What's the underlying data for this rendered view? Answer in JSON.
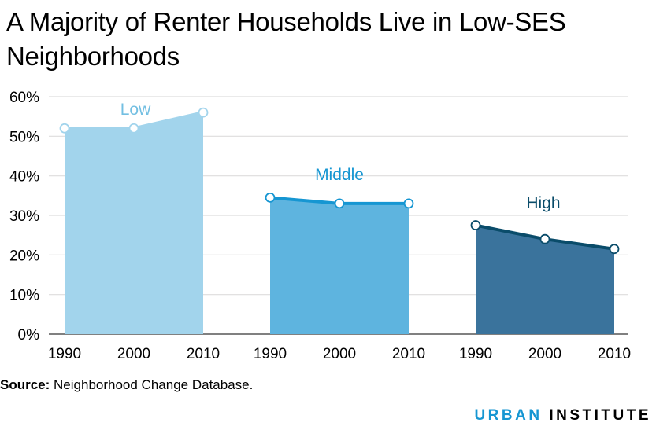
{
  "title": "A Majority of Renter Households Live in Low-SES Neighborhoods",
  "source_label": "Source:",
  "source_text": "Neighborhood Change Database.",
  "logo": {
    "part1": "URBAN",
    "part2": "INSTITUTE"
  },
  "colors": {
    "low_fill": "#a2d4ec",
    "low_line": "#a2d4ec",
    "low_label": "#73bfe2",
    "mid_fill": "#5eb4df",
    "mid_line": "#1696d2",
    "mid_label": "#1696d2",
    "high_fill": "#3a739c",
    "high_line": "#0a4c6a",
    "high_label": "#0a4c6a",
    "grid": "#dedddd"
  },
  "chart_data": {
    "type": "area",
    "title": "A Majority of Renter Households Live in Low-SES Neighborhoods",
    "xlabel": "",
    "ylabel": "",
    "ylim": [
      0,
      60
    ],
    "yticks": [
      "0%",
      "10%",
      "20%",
      "30%",
      "40%",
      "50%",
      "60%"
    ],
    "y_tick_values": [
      0,
      10,
      20,
      30,
      40,
      50,
      60
    ],
    "grid": true,
    "series": [
      {
        "name": "Low",
        "x": [
          "1990",
          "2000",
          "2010"
        ],
        "values": [
          52,
          52,
          56
        ]
      },
      {
        "name": "Middle",
        "x": [
          "1990",
          "2000",
          "2010"
        ],
        "values": [
          34.5,
          33,
          33
        ]
      },
      {
        "name": "High",
        "x": [
          "1990",
          "2000",
          "2010"
        ],
        "values": [
          27.5,
          24,
          21.5
        ]
      }
    ]
  }
}
